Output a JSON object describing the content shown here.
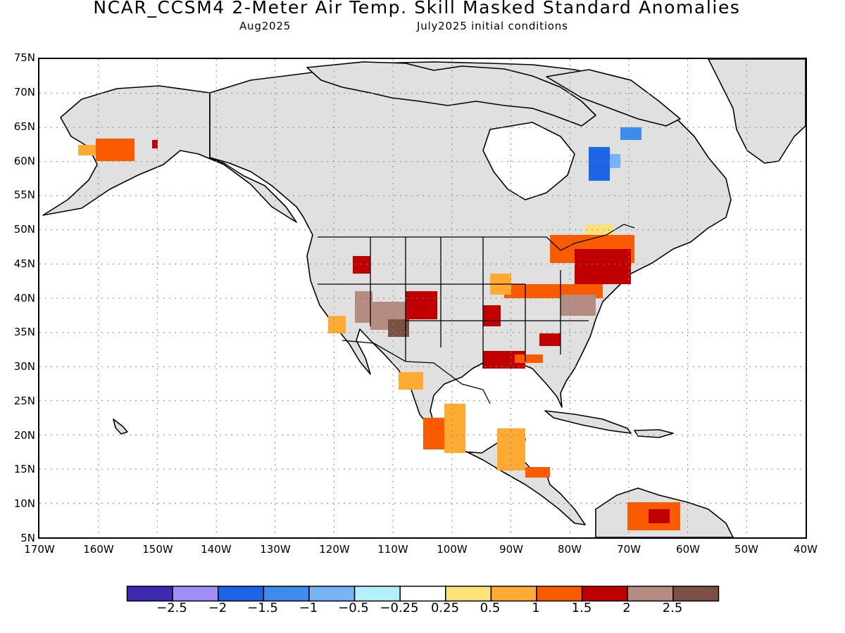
{
  "title": "NCAR_CCSM4 2-Meter Air Temp. Skill Masked Standard Anomalies",
  "subtitle_left": "Aug2025",
  "subtitle_right": "July2025 initial conditions",
  "lat_labels": [
    "75N",
    "70N",
    "65N",
    "60N",
    "55N",
    "50N",
    "45N",
    "40N",
    "35N",
    "30N",
    "25N",
    "20N",
    "15N",
    "10N",
    "5N"
  ],
  "lon_labels": [
    "170W",
    "160W",
    "150W",
    "140W",
    "130W",
    "120W",
    "110W",
    "100W",
    "90W",
    "80W",
    "70W",
    "60W",
    "50W",
    "40W"
  ],
  "map": {
    "lon_range": [
      -170,
      -40
    ],
    "lat_range": [
      5,
      75
    ],
    "grid": "dotted",
    "land_color": "#e0e0e0",
    "coast_color": "#000000"
  },
  "colorbar": {
    "colors": [
      "#3c2bb0",
      "#a28cf5",
      "#1e64e6",
      "#3c8ced",
      "#78b4f5",
      "#b4f0fa",
      "#ffffff",
      "#ffe178",
      "#ffaa32",
      "#fa5a00",
      "#c00000",
      "#b48c82",
      "#7d5046"
    ],
    "labels": [
      "−2.5",
      "−2",
      "−1.5",
      "−1",
      "−0.5",
      "−0.25",
      "0.25",
      "0.5",
      "1",
      "1.5",
      "2",
      "2.5"
    ]
  }
}
